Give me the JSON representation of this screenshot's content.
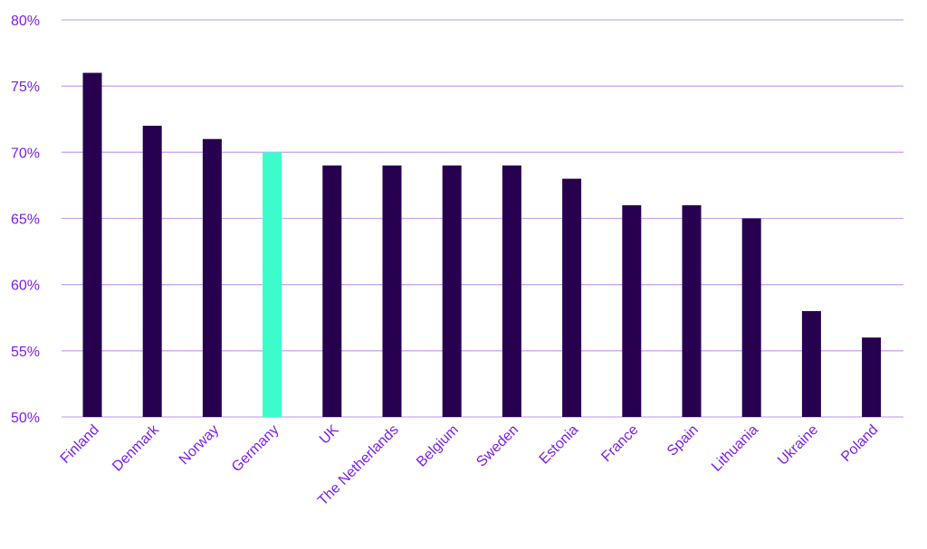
{
  "chart_data": {
    "type": "bar",
    "title": "",
    "xlabel": "",
    "ylabel": "",
    "categories": [
      "Finland",
      "Denmark",
      "Norway",
      "Germany",
      "UK",
      "The Netherlands",
      "Belgium",
      "Sweden",
      "Estonia",
      "France",
      "Spain",
      "Lithuania",
      "Ukraine",
      "Poland"
    ],
    "values": [
      76,
      72,
      71,
      70,
      69,
      69,
      69,
      69,
      68,
      66,
      66,
      65,
      58,
      56
    ],
    "highlight_category": "Germany",
    "ylim": [
      50,
      80
    ],
    "y_ticks": [
      50,
      55,
      60,
      65,
      70,
      75,
      80
    ],
    "y_tick_labels": [
      "50%",
      "55%",
      "60%",
      "65%",
      "70%",
      "75%",
      "80%"
    ],
    "grid": true,
    "legend": "none"
  },
  "colors": {
    "bar": "#27004f",
    "highlight": "#3dfccc",
    "label": "#7a1ee8",
    "grid": "#c9a7f2"
  }
}
